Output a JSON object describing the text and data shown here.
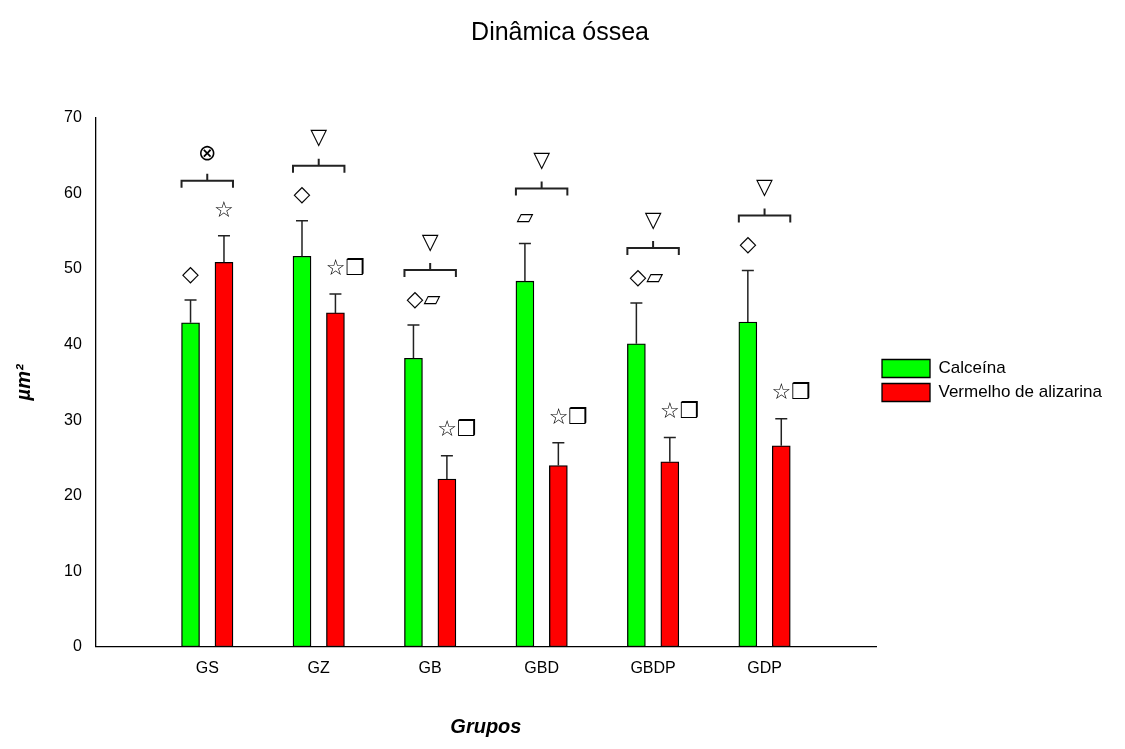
{
  "chart_data": {
    "type": "bar",
    "title": "Dinâmica óssea",
    "xlabel": "Grupos",
    "ylabel": "µm²",
    "categories": [
      "GS",
      "GZ",
      "GB",
      "GBD",
      "GBDP",
      "GDP"
    ],
    "series": [
      {
        "name": "Calceína",
        "color": "#00ff00",
        "values": [
          42.9,
          51.7,
          38.2,
          48.4,
          40.1,
          43.0
        ],
        "errors": [
          [
            42.9,
            45.9
          ],
          [
            51.7,
            56.4
          ],
          [
            38.2,
            42.6
          ],
          [
            48.4,
            53.4
          ],
          [
            40.1,
            45.5
          ],
          [
            43.0,
            49.8
          ]
        ]
      },
      {
        "name": "Vermelho de alizarina",
        "color": "#ff0000",
        "values": [
          50.9,
          44.2,
          22.2,
          24.0,
          24.5,
          26.6
        ],
        "errors": [
          [
            50.9,
            54.4
          ],
          [
            44.2,
            46.7
          ],
          [
            22.2,
            25.3
          ],
          [
            24.0,
            27.0
          ],
          [
            24.5,
            27.7
          ],
          [
            26.6,
            30.2
          ]
        ]
      }
    ],
    "ylim": [
      0,
      70
    ],
    "yticks": [
      0,
      10,
      20,
      30,
      40,
      50,
      60,
      70
    ],
    "grid": false,
    "legend": "right",
    "annotations": [
      "⊗",
      "◇",
      "☆",
      "▽",
      "◇",
      "☆❒",
      "▽",
      "◇▱",
      "☆❒",
      "▽",
      "▱",
      "☆❒",
      "▽",
      "◇▱",
      "☆❒",
      "▽",
      "◇",
      "☆❒"
    ]
  }
}
